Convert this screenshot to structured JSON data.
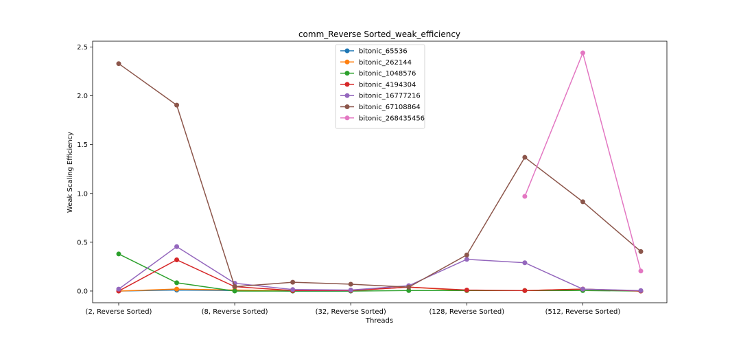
{
  "chart_data": {
    "type": "line",
    "title": "comm_Reverse Sorted_weak_efficiency",
    "xlabel": "Threads",
    "ylabel": "Weak Scaling Efficiency",
    "ylim": [
      -0.12,
      2.56
    ],
    "yticks": [
      0.0,
      0.5,
      1.0,
      1.5,
      2.0,
      2.5
    ],
    "ytick_labels": [
      "0.0",
      "0.5",
      "1.0",
      "1.5",
      "2.0",
      "2.5"
    ],
    "x": [
      "2",
      "4",
      "8",
      "16",
      "32",
      "64",
      "128",
      "256",
      "512",
      "1024"
    ],
    "xtick_indices": [
      0,
      2,
      4,
      6,
      8
    ],
    "xtick_labels": [
      "(2, Reverse Sorted)",
      "(8, Reverse Sorted)",
      "(32, Reverse Sorted)",
      "(128, Reverse Sorted)",
      "(512, Reverse Sorted)"
    ],
    "grid": false,
    "legend_position": "top-center",
    "series": [
      {
        "name": "bitonic_65536",
        "color": "#1f77b4",
        "values": [
          0.0,
          0.01,
          0.005,
          0.0,
          0.0,
          null,
          null,
          null,
          null,
          null
        ]
      },
      {
        "name": "bitonic_262144",
        "color": "#ff7f0e",
        "values": [
          0.0,
          0.02,
          0.01,
          0.005,
          0.005,
          0.04,
          0.005,
          0.005,
          0.02,
          0.0
        ]
      },
      {
        "name": "bitonic_1048576",
        "color": "#2ca02c",
        "values": [
          0.38,
          0.085,
          0.0,
          0.0,
          0.0,
          0.005,
          0.005,
          0.005,
          0.005,
          0.0
        ]
      },
      {
        "name": "bitonic_4194304",
        "color": "#d62728",
        "values": [
          0.0,
          0.32,
          0.045,
          0.005,
          0.005,
          0.04,
          0.01,
          0.005,
          0.02,
          0.0
        ]
      },
      {
        "name": "bitonic_16777216",
        "color": "#9467bd",
        "values": [
          0.02,
          0.455,
          0.08,
          0.015,
          0.01,
          0.055,
          0.325,
          0.29,
          0.02,
          0.005
        ]
      },
      {
        "name": "bitonic_67108864",
        "color": "#8c564b",
        "values": [
          2.33,
          1.905,
          0.045,
          0.09,
          0.07,
          0.04,
          0.37,
          1.37,
          0.915,
          0.405
        ]
      },
      {
        "name": "bitonic_268435456",
        "color": "#e377c2",
        "values": [
          null,
          null,
          null,
          null,
          null,
          null,
          null,
          0.97,
          2.44,
          0.205
        ]
      }
    ]
  }
}
